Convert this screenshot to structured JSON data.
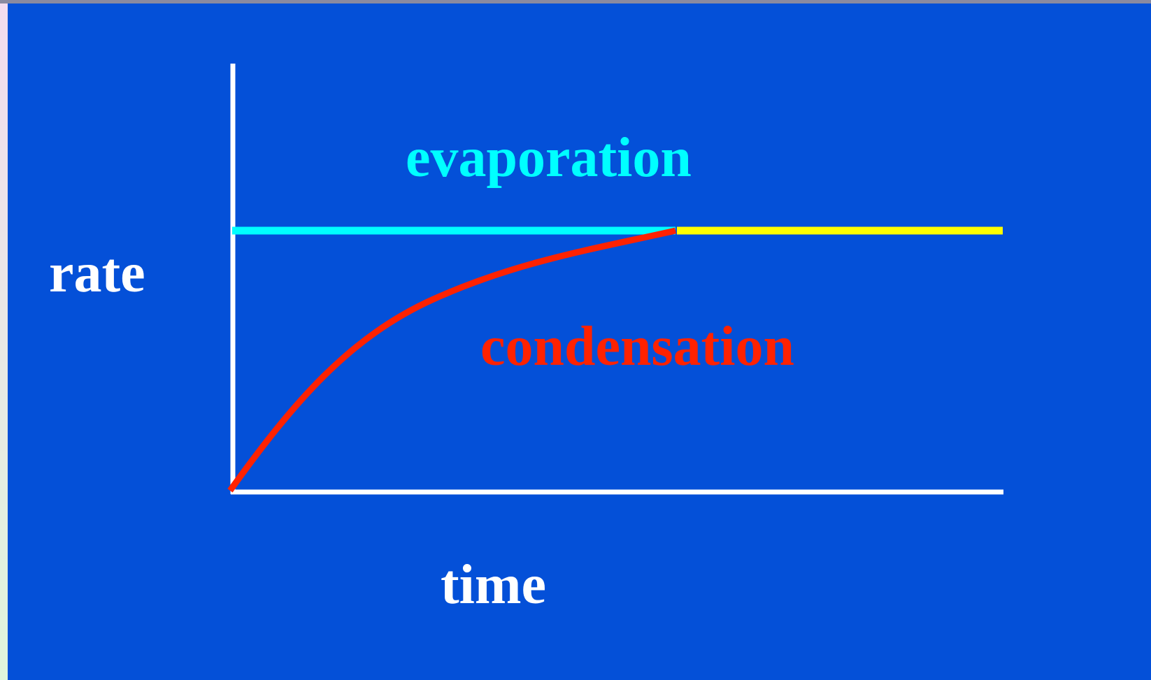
{
  "diagram": {
    "y_axis_label": "rate",
    "x_axis_label": "time",
    "upper_label": "evaporation",
    "lower_label": "condensation"
  }
}
